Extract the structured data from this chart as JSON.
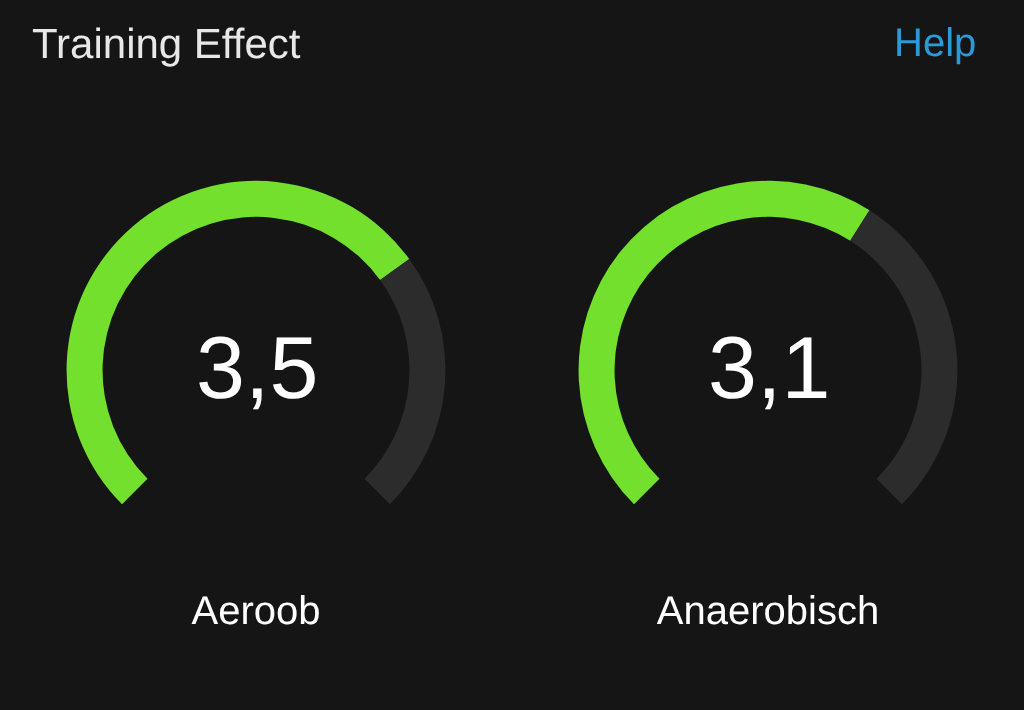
{
  "chart_data": [
    {
      "type": "donut",
      "title": "Aeroob",
      "categories": [
        null,
        null
      ],
      "values": [
        3.5,
        1.5
      ],
      "colors": [
        "#72e02c",
        "#2c2c2c"
      ],
      "value_labels": [
        "3,5",
        null
      ],
      "annotations": [
        "Training Effect"
      ]
    },
    {
      "type": "donut",
      "title": "Anaerobisch",
      "categories": [
        null,
        null
      ],
      "values": [
        3.1,
        1.9
      ],
      "colors": [
        "#72e02c",
        "#2c2c2c"
      ],
      "value_labels": [
        "3,1",
        null
      ],
      "annotations": [
        "Help"
      ]
    }
  ]
}
